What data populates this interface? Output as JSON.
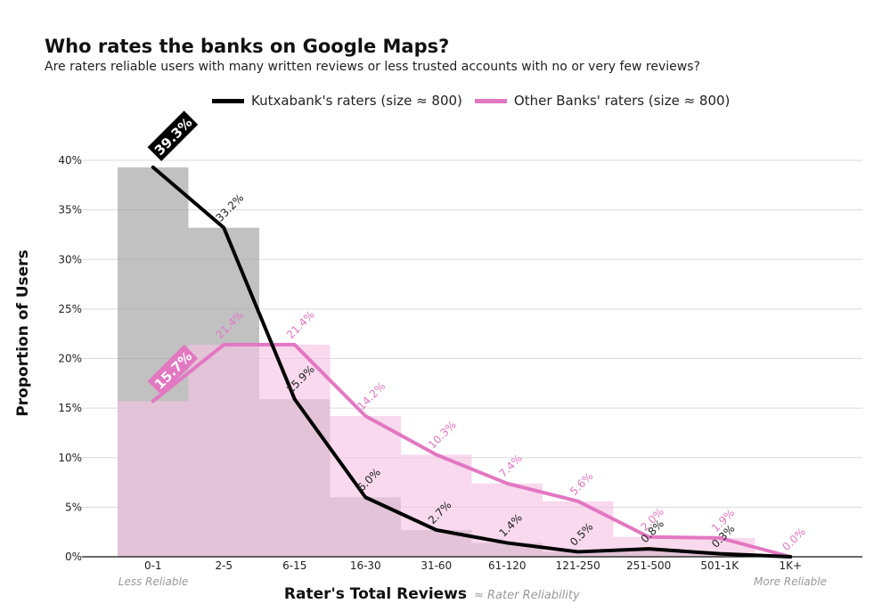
{
  "chart_data": {
    "type": "line",
    "title": "Who rates the banks on Google Maps?",
    "subtitle": "Are raters reliable users with many written reviews or less trusted accounts with no or very few reviews?",
    "xlabel": "Rater's Total Reviews",
    "xlabel_note": "≈ Rater Reliability",
    "ylabel": "Proportion of Users",
    "x_left_note": "Less Reliable",
    "x_right_note": "More Reliable",
    "categories": [
      "0-1",
      "2-5",
      "6-15",
      "16-30",
      "31-60",
      "61-120",
      "121-250",
      "251-500",
      "501-1K",
      "1K+"
    ],
    "ylim": [
      0,
      40
    ],
    "yticks": [
      0,
      5,
      10,
      15,
      20,
      25,
      30,
      35,
      40
    ],
    "ytick_labels": [
      "0%",
      "5%",
      "10%",
      "15%",
      "20%",
      "25%",
      "30%",
      "35%",
      "40%"
    ],
    "grid": true,
    "legend_position": "top",
    "series": [
      {
        "name": "Kutxabank's raters (size ≈ 800)",
        "color": "#000000",
        "bar_color": "#a9a9a9",
        "values": [
          39.3,
          33.2,
          15.9,
          6.0,
          2.7,
          1.4,
          0.5,
          0.8,
          0.3,
          0.0
        ],
        "labels": [
          "39.3%",
          "33.2%",
          "15.9%",
          "6.0%",
          "2.7%",
          "1.4%",
          "0.5%",
          "0.8%",
          "0.3%",
          ""
        ]
      },
      {
        "name": "Other Banks' raters (size ≈ 800)",
        "color": "#e377c2",
        "bar_color": "#f5c5e4",
        "values": [
          15.7,
          21.4,
          21.4,
          14.2,
          10.3,
          7.4,
          5.6,
          2.0,
          1.9,
          0.0
        ],
        "labels": [
          "15.7%",
          "21.4%",
          "21.4%",
          "14.2%",
          "10.3%",
          "7.4%",
          "5.6%",
          "2.0%",
          "1.9%",
          "0.0%"
        ]
      }
    ]
  }
}
